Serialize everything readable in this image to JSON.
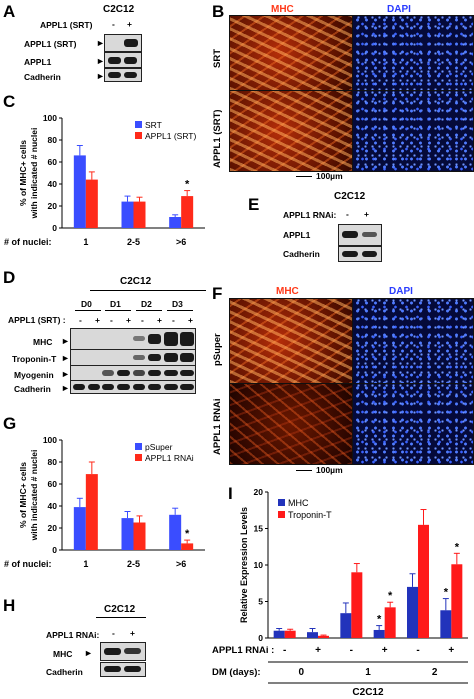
{
  "panels": {
    "A": {
      "label": "A",
      "cell_line": "C2C12",
      "row_header": "APPL1 (SRT)",
      "lane_marks": [
        "-",
        "+"
      ],
      "rows": [
        "APPL1 (SRT)",
        "APPL1",
        "Cadherin"
      ]
    },
    "B": {
      "label": "B",
      "channels": [
        "MHC",
        "DAPI"
      ],
      "rows": [
        "SRT",
        "APPL1 (SRT)"
      ],
      "scale": "100µm"
    },
    "C": {
      "label": "C"
    },
    "D": {
      "label": "D",
      "cell_line": "C2C12",
      "days": [
        "D0",
        "D1",
        "D2",
        "D3"
      ],
      "row_header": "APPL1 (SRT) :",
      "lane_marks": [
        "-",
        "+",
        "-",
        "+",
        "-",
        "+",
        "-",
        "+"
      ],
      "rows": [
        "MHC",
        "Troponin-T",
        "Myogenin",
        "Cadherin"
      ]
    },
    "E": {
      "label": "E",
      "cell_line": "C2C12",
      "row_header": "APPL1 RNAi:",
      "lane_marks": [
        "-",
        "+"
      ],
      "rows": [
        "APPL1",
        "Cadherin"
      ]
    },
    "F": {
      "label": "F",
      "channels": [
        "MHC",
        "DAPI"
      ],
      "rows": [
        "pSuper",
        "APPL1 RNAi"
      ],
      "scale": "100µm"
    },
    "G": {
      "label": "G"
    },
    "H": {
      "label": "H",
      "cell_line": "C2C12",
      "row_header": "APPL1 RNAi:",
      "lane_marks": [
        "-",
        "+"
      ],
      "rows": [
        "MHC",
        "Cadherin"
      ]
    },
    "I": {
      "label": "I"
    }
  },
  "chart_data": [
    {
      "type": "bar",
      "panel": "C",
      "ylabel": "% of MHC+ cells with indicated # nuclei",
      "xlabel": "# of nuclei:",
      "categories": [
        "1",
        "2-5",
        ">6"
      ],
      "ylim": [
        0,
        100
      ],
      "yticks": [
        0,
        20,
        40,
        60,
        80,
        100
      ],
      "series": [
        {
          "name": "SRT",
          "color": "#3a4dff",
          "values": [
            66,
            24,
            10
          ],
          "errors": [
            9,
            5,
            2
          ]
        },
        {
          "name": "APPL1 (SRT)",
          "color": "#ff2a1a",
          "values": [
            44,
            24,
            29
          ],
          "errors": [
            7,
            4,
            5
          ]
        }
      ],
      "annotations": [
        "*"
      ],
      "legend": "top-right"
    },
    {
      "type": "bar",
      "panel": "G",
      "ylabel": "% of MHC+ cells with indicated # nuclei",
      "xlabel": "# of nuclei:",
      "categories": [
        "1",
        "2-5",
        ">6"
      ],
      "ylim": [
        0,
        100
      ],
      "yticks": [
        0,
        20,
        40,
        60,
        80,
        100
      ],
      "series": [
        {
          "name": "pSuper",
          "color": "#3a4dff",
          "values": [
            39,
            29,
            32
          ],
          "errors": [
            8,
            6,
            6
          ]
        },
        {
          "name": "APPL1 RNAi",
          "color": "#ff2a1a",
          "values": [
            69,
            25,
            6
          ],
          "errors": [
            11,
            6,
            3
          ]
        }
      ],
      "annotations": [
        "*"
      ],
      "legend": "top-right"
    },
    {
      "type": "bar",
      "panel": "I",
      "ylabel": "Relative Expression Levels",
      "ylim": [
        0,
        20
      ],
      "yticks": [
        0,
        5,
        10,
        15,
        20
      ],
      "row1_label": "APPL1 RNAi :",
      "row1_marks": [
        "-",
        "+",
        "-",
        "+",
        "-",
        "+"
      ],
      "row2_label": "DM (days):",
      "groups": [
        "0",
        "1",
        "2"
      ],
      "group_title": "C2C12",
      "series": [
        {
          "name": "MHC",
          "color": "#2233bb",
          "values": [
            1.0,
            0.8,
            3.4,
            1.1,
            7.0,
            3.8
          ],
          "errors": [
            0.3,
            0.5,
            1.4,
            0.6,
            1.8,
            1.6
          ]
        },
        {
          "name": "Troponin-T",
          "color": "#ff1a1a",
          "values": [
            1.0,
            0.3,
            9.0,
            4.2,
            15.5,
            10.1
          ],
          "errors": [
            0.2,
            0.1,
            1.2,
            0.7,
            2.1,
            1.5
          ]
        }
      ],
      "annotations": [
        "*",
        "*",
        "*",
        "*"
      ],
      "legend": "top-left"
    }
  ]
}
